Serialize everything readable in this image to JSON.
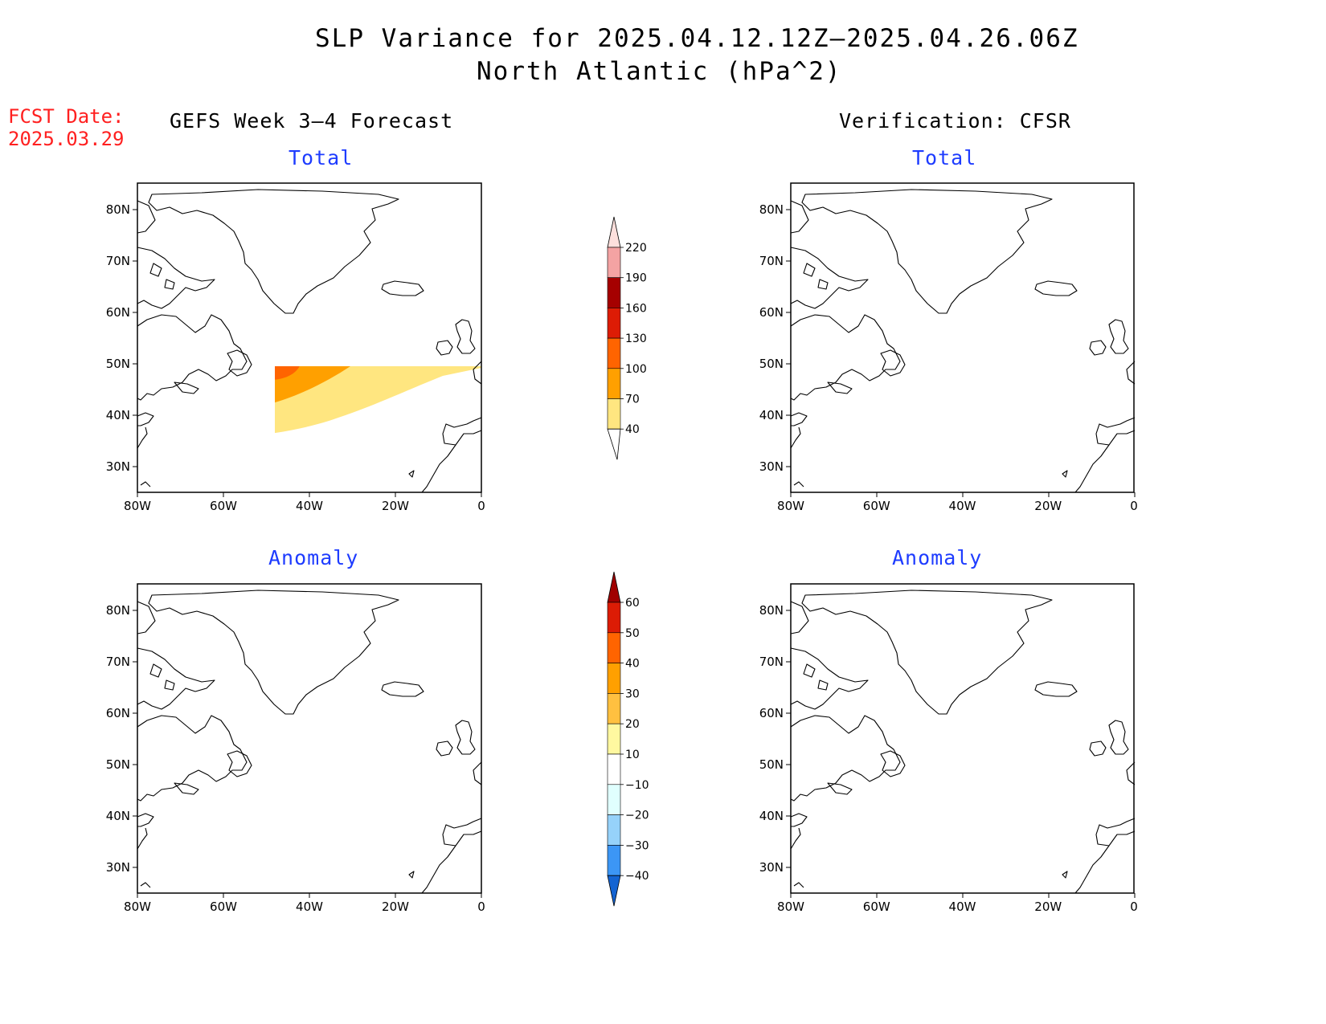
{
  "title_line1": "SLP Variance for 2025.04.12.12Z–2025.04.26.06Z",
  "title_line2": "North Atlantic (hPa^2)",
  "fcst_label": "FCST Date:",
  "fcst_value": "2025.03.29",
  "left_column_title": "GEFS Week 3–4 Forecast",
  "right_column_title": "Verification: CFSR",
  "panels": [
    {
      "id": "gefs-total",
      "subtitle": "Total"
    },
    {
      "id": "cfsr-total",
      "subtitle": "Total"
    },
    {
      "id": "gefs-anomaly",
      "subtitle": "Anomaly"
    },
    {
      "id": "cfsr-anomaly",
      "subtitle": "Anomaly"
    }
  ],
  "lat_ticks": [
    "80N",
    "70N",
    "60N",
    "50N",
    "40N",
    "30N"
  ],
  "lon_ticks": [
    "80W",
    "60W",
    "40W",
    "20W",
    "0"
  ],
  "map_extent": {
    "lon": [
      -80,
      0
    ],
    "lat": [
      25,
      85
    ]
  },
  "total_colorbar": {
    "labels": [
      "220",
      "190",
      "160",
      "130",
      "100",
      "70",
      "40"
    ],
    "colors": [
      "#fde0dd",
      "#f4a3a3",
      "#a50000",
      "#dd1c05",
      "#ff6400",
      "#ffa000",
      "#ffe680"
    ]
  },
  "anomaly_colorbar": {
    "labels": [
      "60",
      "50",
      "40",
      "30",
      "20",
      "10",
      "−10",
      "−20",
      "−30",
      "−40"
    ],
    "colors": [
      "#a00000",
      "#dc1c05",
      "#ff6400",
      "#ffa000",
      "#ffc040",
      "#fff8a0",
      "#ffffff",
      "#e0fffe",
      "#96d2fa",
      "#3c96f5",
      "#1464d2"
    ]
  }
}
